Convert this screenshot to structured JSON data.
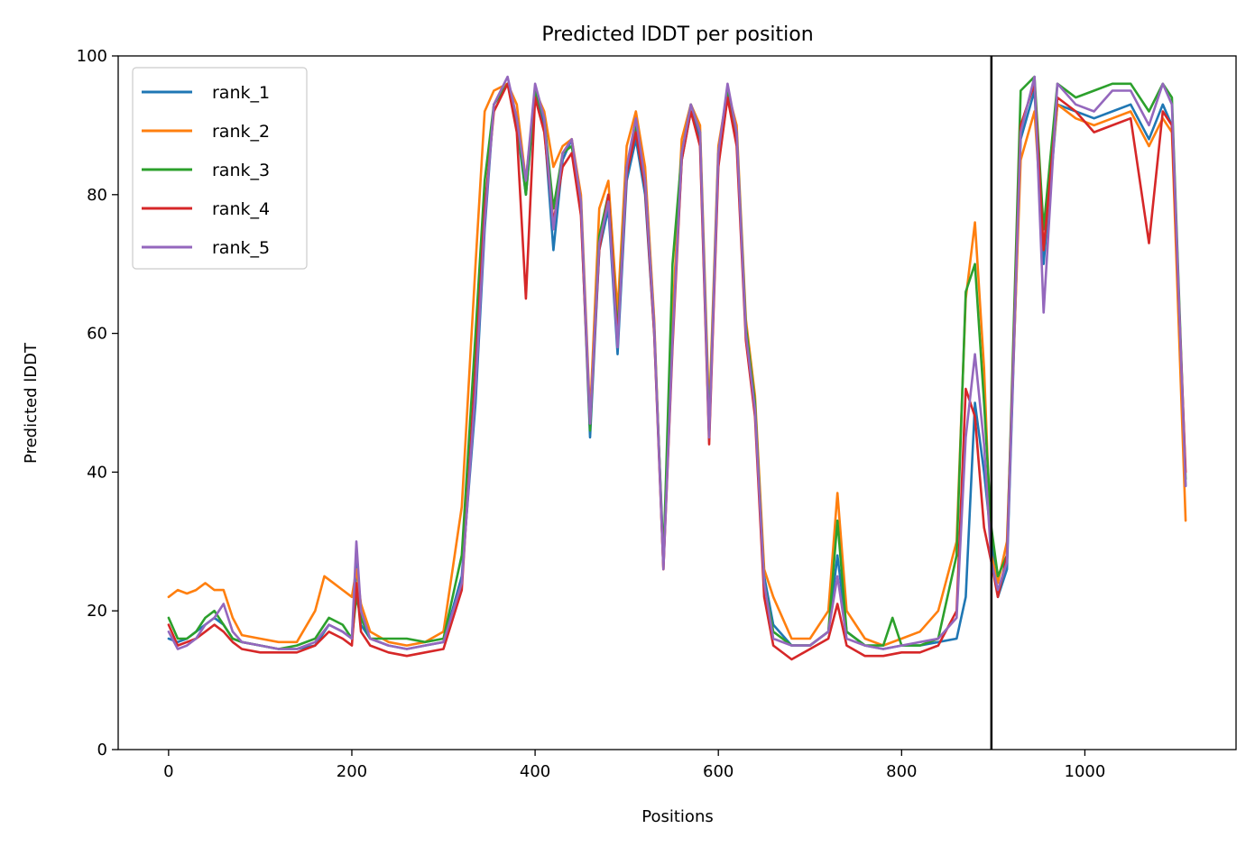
{
  "chart_data": {
    "type": "line",
    "title": "Predicted lDDT per position",
    "xlabel": "Positions",
    "ylabel": "Predicted lDDT",
    "xlim": [
      -55,
      1165
    ],
    "ylim": [
      0,
      100
    ],
    "xticks": [
      0,
      200,
      400,
      600,
      800,
      1000
    ],
    "yticks": [
      0,
      20,
      40,
      60,
      80,
      100
    ],
    "grid": false,
    "legend_position": "top-left",
    "chain_break_x": 898,
    "series": [
      {
        "name": "rank_1",
        "color": "#1f77b4",
        "x": [
          0,
          10,
          20,
          30,
          40,
          50,
          60,
          70,
          80,
          100,
          120,
          140,
          160,
          175,
          190,
          200,
          205,
          210,
          220,
          240,
          260,
          280,
          300,
          320,
          335,
          345,
          355,
          370,
          380,
          390,
          400,
          410,
          420,
          430,
          440,
          450,
          460,
          470,
          480,
          490,
          500,
          510,
          520,
          530,
          540,
          550,
          560,
          570,
          580,
          590,
          600,
          610,
          620,
          630,
          640,
          650,
          660,
          680,
          700,
          720,
          730,
          740,
          760,
          780,
          800,
          820,
          840,
          860,
          870,
          880,
          890,
          898,
          905,
          915,
          930,
          945,
          955,
          970,
          990,
          1010,
          1030,
          1050,
          1070,
          1085,
          1095,
          1110
        ],
        "y": [
          16,
          15.5,
          16,
          17,
          18,
          19,
          18,
          16,
          15.5,
          15,
          14.5,
          14.5,
          15,
          18,
          17,
          16,
          27,
          18,
          16,
          15,
          14.5,
          15,
          15.5,
          25,
          50,
          75,
          93,
          96,
          90,
          80,
          94,
          90,
          72,
          85,
          88,
          78,
          45,
          72,
          78,
          57,
          82,
          88,
          80,
          60,
          28,
          60,
          85,
          92,
          88,
          45,
          85,
          94,
          88,
          60,
          50,
          25,
          18,
          15,
          15,
          17,
          28,
          17,
          15,
          14.5,
          15,
          15,
          15.5,
          16,
          22,
          50,
          40,
          30,
          22,
          26,
          88,
          95,
          70,
          93,
          92,
          91,
          92,
          93,
          88,
          93,
          90,
          38
        ]
      },
      {
        "name": "rank_2",
        "color": "#ff7f0e",
        "x": [
          0,
          10,
          20,
          30,
          40,
          50,
          60,
          70,
          80,
          100,
          120,
          140,
          160,
          170,
          180,
          190,
          200,
          205,
          210,
          220,
          240,
          260,
          280,
          300,
          320,
          335,
          345,
          355,
          370,
          380,
          390,
          400,
          410,
          420,
          430,
          440,
          450,
          460,
          470,
          480,
          490,
          500,
          510,
          520,
          530,
          540,
          550,
          560,
          570,
          580,
          590,
          600,
          610,
          620,
          630,
          640,
          650,
          660,
          680,
          700,
          720,
          730,
          740,
          760,
          780,
          800,
          820,
          840,
          860,
          870,
          880,
          890,
          898,
          905,
          915,
          930,
          945,
          955,
          970,
          990,
          1010,
          1030,
          1050,
          1070,
          1085,
          1095,
          1110
        ],
        "y": [
          22,
          23,
          22.5,
          23,
          24,
          23,
          23,
          19,
          16.5,
          16,
          15.5,
          15.5,
          20,
          25,
          24,
          23,
          22,
          26,
          21,
          17,
          15.5,
          15,
          15.5,
          17,
          35,
          70,
          92,
          95,
          96,
          93,
          82,
          95,
          92,
          84,
          87,
          88,
          80,
          48,
          78,
          82,
          63,
          87,
          92,
          84,
          62,
          26,
          62,
          88,
          93,
          90,
          48,
          87,
          95,
          90,
          62,
          51,
          26,
          22,
          16,
          16,
          20,
          37,
          20,
          16,
          15,
          16,
          17,
          20,
          30,
          65,
          76,
          55,
          28,
          24,
          30,
          85,
          92,
          72,
          93,
          91,
          90,
          91,
          92,
          87,
          91,
          89,
          33
        ]
      },
      {
        "name": "rank_3",
        "color": "#2ca02c",
        "x": [
          0,
          10,
          20,
          30,
          40,
          50,
          60,
          70,
          80,
          100,
          120,
          140,
          160,
          175,
          190,
          200,
          205,
          210,
          220,
          240,
          260,
          280,
          300,
          320,
          335,
          345,
          355,
          370,
          380,
          390,
          400,
          410,
          420,
          430,
          440,
          450,
          460,
          470,
          480,
          490,
          500,
          510,
          520,
          530,
          540,
          550,
          560,
          570,
          580,
          590,
          600,
          610,
          620,
          630,
          640,
          650,
          660,
          680,
          700,
          720,
          730,
          740,
          760,
          780,
          790,
          800,
          820,
          840,
          860,
          870,
          880,
          890,
          898,
          905,
          915,
          930,
          945,
          955,
          970,
          990,
          1010,
          1030,
          1050,
          1070,
          1085,
          1095,
          1110
        ],
        "y": [
          19,
          16,
          16,
          17,
          19,
          20,
          18,
          16,
          15.5,
          15,
          14.5,
          15,
          16,
          19,
          18,
          16,
          22,
          19,
          16,
          16,
          16,
          15.5,
          16,
          28,
          60,
          82,
          93,
          96,
          91,
          80,
          95,
          91,
          78,
          86,
          87,
          79,
          46,
          74,
          80,
          60,
          84,
          90,
          82,
          61,
          27,
          70,
          86,
          93,
          89,
          46,
          86,
          95,
          89,
          61,
          50,
          24,
          17,
          15,
          15,
          17,
          33,
          17,
          15,
          15,
          19,
          15,
          15,
          16,
          28,
          66,
          70,
          50,
          32,
          25,
          28,
          95,
          97,
          75,
          96,
          94,
          95,
          96,
          96,
          92,
          96,
          94,
          39
        ]
      },
      {
        "name": "rank_4",
        "color": "#d62728",
        "x": [
          0,
          10,
          20,
          30,
          40,
          50,
          60,
          70,
          80,
          100,
          120,
          140,
          160,
          175,
          190,
          200,
          205,
          210,
          220,
          240,
          260,
          280,
          300,
          320,
          335,
          345,
          355,
          370,
          380,
          390,
          400,
          410,
          420,
          430,
          440,
          450,
          460,
          470,
          480,
          490,
          500,
          510,
          520,
          530,
          540,
          550,
          560,
          570,
          580,
          590,
          600,
          610,
          620,
          630,
          640,
          650,
          660,
          680,
          700,
          720,
          730,
          740,
          760,
          780,
          800,
          820,
          840,
          860,
          870,
          880,
          890,
          898,
          905,
          915,
          930,
          945,
          955,
          970,
          990,
          1010,
          1030,
          1050,
          1070,
          1085,
          1095,
          1110
        ],
        "y": [
          18,
          15,
          15.5,
          16,
          17,
          18,
          17,
          15.5,
          14.5,
          14,
          14,
          14,
          15,
          17,
          16,
          15,
          24,
          17,
          15,
          14,
          13.5,
          14,
          14.5,
          23,
          55,
          78,
          92,
          96,
          89,
          65,
          94,
          89,
          76,
          84,
          86,
          77,
          47,
          72,
          80,
          59,
          83,
          89,
          81,
          60,
          26,
          58,
          85,
          92,
          87,
          44,
          84,
          94,
          87,
          59,
          48,
          22,
          15,
          13,
          14.5,
          16,
          21,
          15,
          13.5,
          13.5,
          14,
          14,
          15,
          20,
          52,
          48,
          32,
          27,
          22,
          28,
          90,
          96,
          72,
          94,
          92,
          89,
          90,
          91,
          73,
          92,
          90,
          40
        ]
      },
      {
        "name": "rank_5",
        "color": "#9467bd",
        "x": [
          0,
          10,
          20,
          30,
          40,
          50,
          60,
          70,
          80,
          100,
          120,
          140,
          160,
          175,
          190,
          200,
          205,
          210,
          220,
          240,
          260,
          280,
          300,
          320,
          335,
          345,
          355,
          370,
          380,
          390,
          400,
          410,
          420,
          430,
          440,
          450,
          460,
          470,
          480,
          490,
          500,
          510,
          520,
          530,
          540,
          550,
          560,
          570,
          580,
          590,
          600,
          610,
          620,
          630,
          640,
          650,
          660,
          680,
          700,
          720,
          730,
          740,
          760,
          780,
          800,
          820,
          840,
          860,
          870,
          880,
          890,
          898,
          905,
          915,
          930,
          945,
          955,
          970,
          990,
          1010,
          1030,
          1050,
          1070,
          1085,
          1095,
          1110
        ],
        "y": [
          17,
          14.5,
          15,
          16,
          18,
          19,
          21,
          17,
          15.5,
          15,
          14.5,
          14.5,
          15.5,
          18,
          17,
          16,
          30,
          20,
          16,
          15,
          14.5,
          15,
          15.5,
          24,
          52,
          76,
          93,
          97,
          91,
          82,
          96,
          91,
          75,
          86,
          88,
          79,
          47,
          73,
          79,
          58,
          84,
          91,
          82,
          61,
          26,
          59,
          86,
          93,
          89,
          45,
          86,
          96,
          89,
          60,
          49,
          24,
          16,
          15,
          15,
          17,
          25,
          16,
          15,
          14.5,
          15,
          15.5,
          16,
          19,
          45,
          57,
          44,
          27,
          23,
          27,
          89,
          97,
          63,
          96,
          93,
          92,
          95,
          95,
          90,
          96,
          93,
          38
        ]
      }
    ]
  }
}
